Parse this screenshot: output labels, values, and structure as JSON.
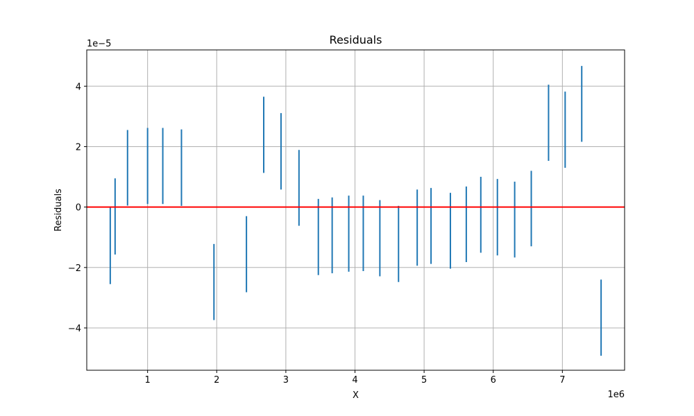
{
  "chart_data": {
    "type": "errorbar",
    "title": "Residuals",
    "xlabel": "X",
    "ylabel": "Residuals",
    "x_offset_label": "1e6",
    "y_offset_label": "1e−5",
    "x_scale": 1000000,
    "y_scale": 1e-05,
    "xlim": [
      0.12,
      7.9
    ],
    "ylim": [
      -5.4,
      5.2
    ],
    "x_ticks": [
      1,
      2,
      3,
      4,
      5,
      6,
      7
    ],
    "x_tick_labels": [
      "1",
      "2",
      "3",
      "4",
      "5",
      "6",
      "7"
    ],
    "y_ticks": [
      -4,
      -2,
      0,
      2,
      4
    ],
    "y_tick_labels": [
      "−4",
      "−2",
      "0",
      "2",
      "4"
    ],
    "grid": true,
    "reference_line": {
      "y": 0,
      "color": "#ff0000"
    },
    "series_color": "#1f77b4",
    "bars": [
      {
        "x": 0.46,
        "low": -2.55,
        "high": 0.0
      },
      {
        "x": 0.53,
        "low": -1.57,
        "high": 0.95
      },
      {
        "x": 0.71,
        "low": 0.05,
        "high": 2.55
      },
      {
        "x": 1.0,
        "low": 0.1,
        "high": 2.62
      },
      {
        "x": 1.22,
        "low": 0.1,
        "high": 2.62
      },
      {
        "x": 1.49,
        "low": 0.04,
        "high": 2.57
      },
      {
        "x": 1.96,
        "low": -3.74,
        "high": -1.22
      },
      {
        "x": 2.43,
        "low": -2.82,
        "high": -0.3
      },
      {
        "x": 2.68,
        "low": 1.13,
        "high": 3.65
      },
      {
        "x": 2.93,
        "low": 0.58,
        "high": 3.11
      },
      {
        "x": 3.19,
        "low": -0.62,
        "high": 1.89
      },
      {
        "x": 3.47,
        "low": -2.25,
        "high": 0.27
      },
      {
        "x": 3.67,
        "low": -2.19,
        "high": 0.32
      },
      {
        "x": 3.91,
        "low": -2.14,
        "high": 0.38
      },
      {
        "x": 4.12,
        "low": -2.12,
        "high": 0.38
      },
      {
        "x": 4.36,
        "low": -2.29,
        "high": 0.23
      },
      {
        "x": 4.63,
        "low": -2.48,
        "high": 0.04
      },
      {
        "x": 4.9,
        "low": -1.94,
        "high": 0.58
      },
      {
        "x": 5.1,
        "low": -1.88,
        "high": 0.63
      },
      {
        "x": 5.38,
        "low": -2.04,
        "high": 0.47
      },
      {
        "x": 5.61,
        "low": -1.82,
        "high": 0.68
      },
      {
        "x": 5.82,
        "low": -1.51,
        "high": 1.0
      },
      {
        "x": 6.06,
        "low": -1.6,
        "high": 0.93
      },
      {
        "x": 6.31,
        "low": -1.67,
        "high": 0.84
      },
      {
        "x": 6.55,
        "low": -1.3,
        "high": 1.2
      },
      {
        "x": 6.8,
        "low": 1.53,
        "high": 4.05
      },
      {
        "x": 7.04,
        "low": 1.3,
        "high": 3.82
      },
      {
        "x": 7.28,
        "low": 2.16,
        "high": 4.67
      },
      {
        "x": 7.56,
        "low": -4.92,
        "high": -2.4
      }
    ]
  }
}
